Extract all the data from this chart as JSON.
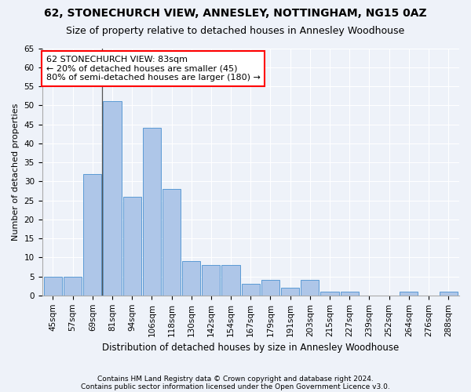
{
  "title1": "62, STONECHURCH VIEW, ANNESLEY, NOTTINGHAM, NG15 0AZ",
  "title2": "Size of property relative to detached houses in Annesley Woodhouse",
  "xlabel": "Distribution of detached houses by size in Annesley Woodhouse",
  "ylabel": "Number of detached properties",
  "footnote1": "Contains HM Land Registry data © Crown copyright and database right 2024.",
  "footnote2": "Contains public sector information licensed under the Open Government Licence v3.0.",
  "categories": [
    "45sqm",
    "57sqm",
    "69sqm",
    "81sqm",
    "94sqm",
    "106sqm",
    "118sqm",
    "130sqm",
    "142sqm",
    "154sqm",
    "167sqm",
    "179sqm",
    "191sqm",
    "203sqm",
    "215sqm",
    "227sqm",
    "239sqm",
    "252sqm",
    "264sqm",
    "276sqm",
    "288sqm"
  ],
  "values": [
    5,
    5,
    32,
    51,
    26,
    44,
    28,
    9,
    8,
    8,
    3,
    4,
    2,
    4,
    1,
    1,
    0,
    0,
    1,
    0,
    1
  ],
  "bar_color": "#aec6e8",
  "bar_edge_color": "#5b9bd5",
  "annotation_line": "62 STONECHURCH VIEW: 83sqm",
  "annotation_line2": "← 20% of detached houses are smaller (45)",
  "annotation_line3": "80% of semi-detached houses are larger (180) →",
  "annotation_box_color": "white",
  "annotation_box_edge_color": "red",
  "vline_x": 3,
  "ylim": [
    0,
    65
  ],
  "yticks": [
    0,
    5,
    10,
    15,
    20,
    25,
    30,
    35,
    40,
    45,
    50,
    55,
    60,
    65
  ],
  "background_color": "#eef2f9",
  "grid_color": "white",
  "title1_fontsize": 10,
  "title2_fontsize": 9,
  "xlabel_fontsize": 8.5,
  "ylabel_fontsize": 8,
  "tick_fontsize": 7.5,
  "annotation_fontsize": 8
}
